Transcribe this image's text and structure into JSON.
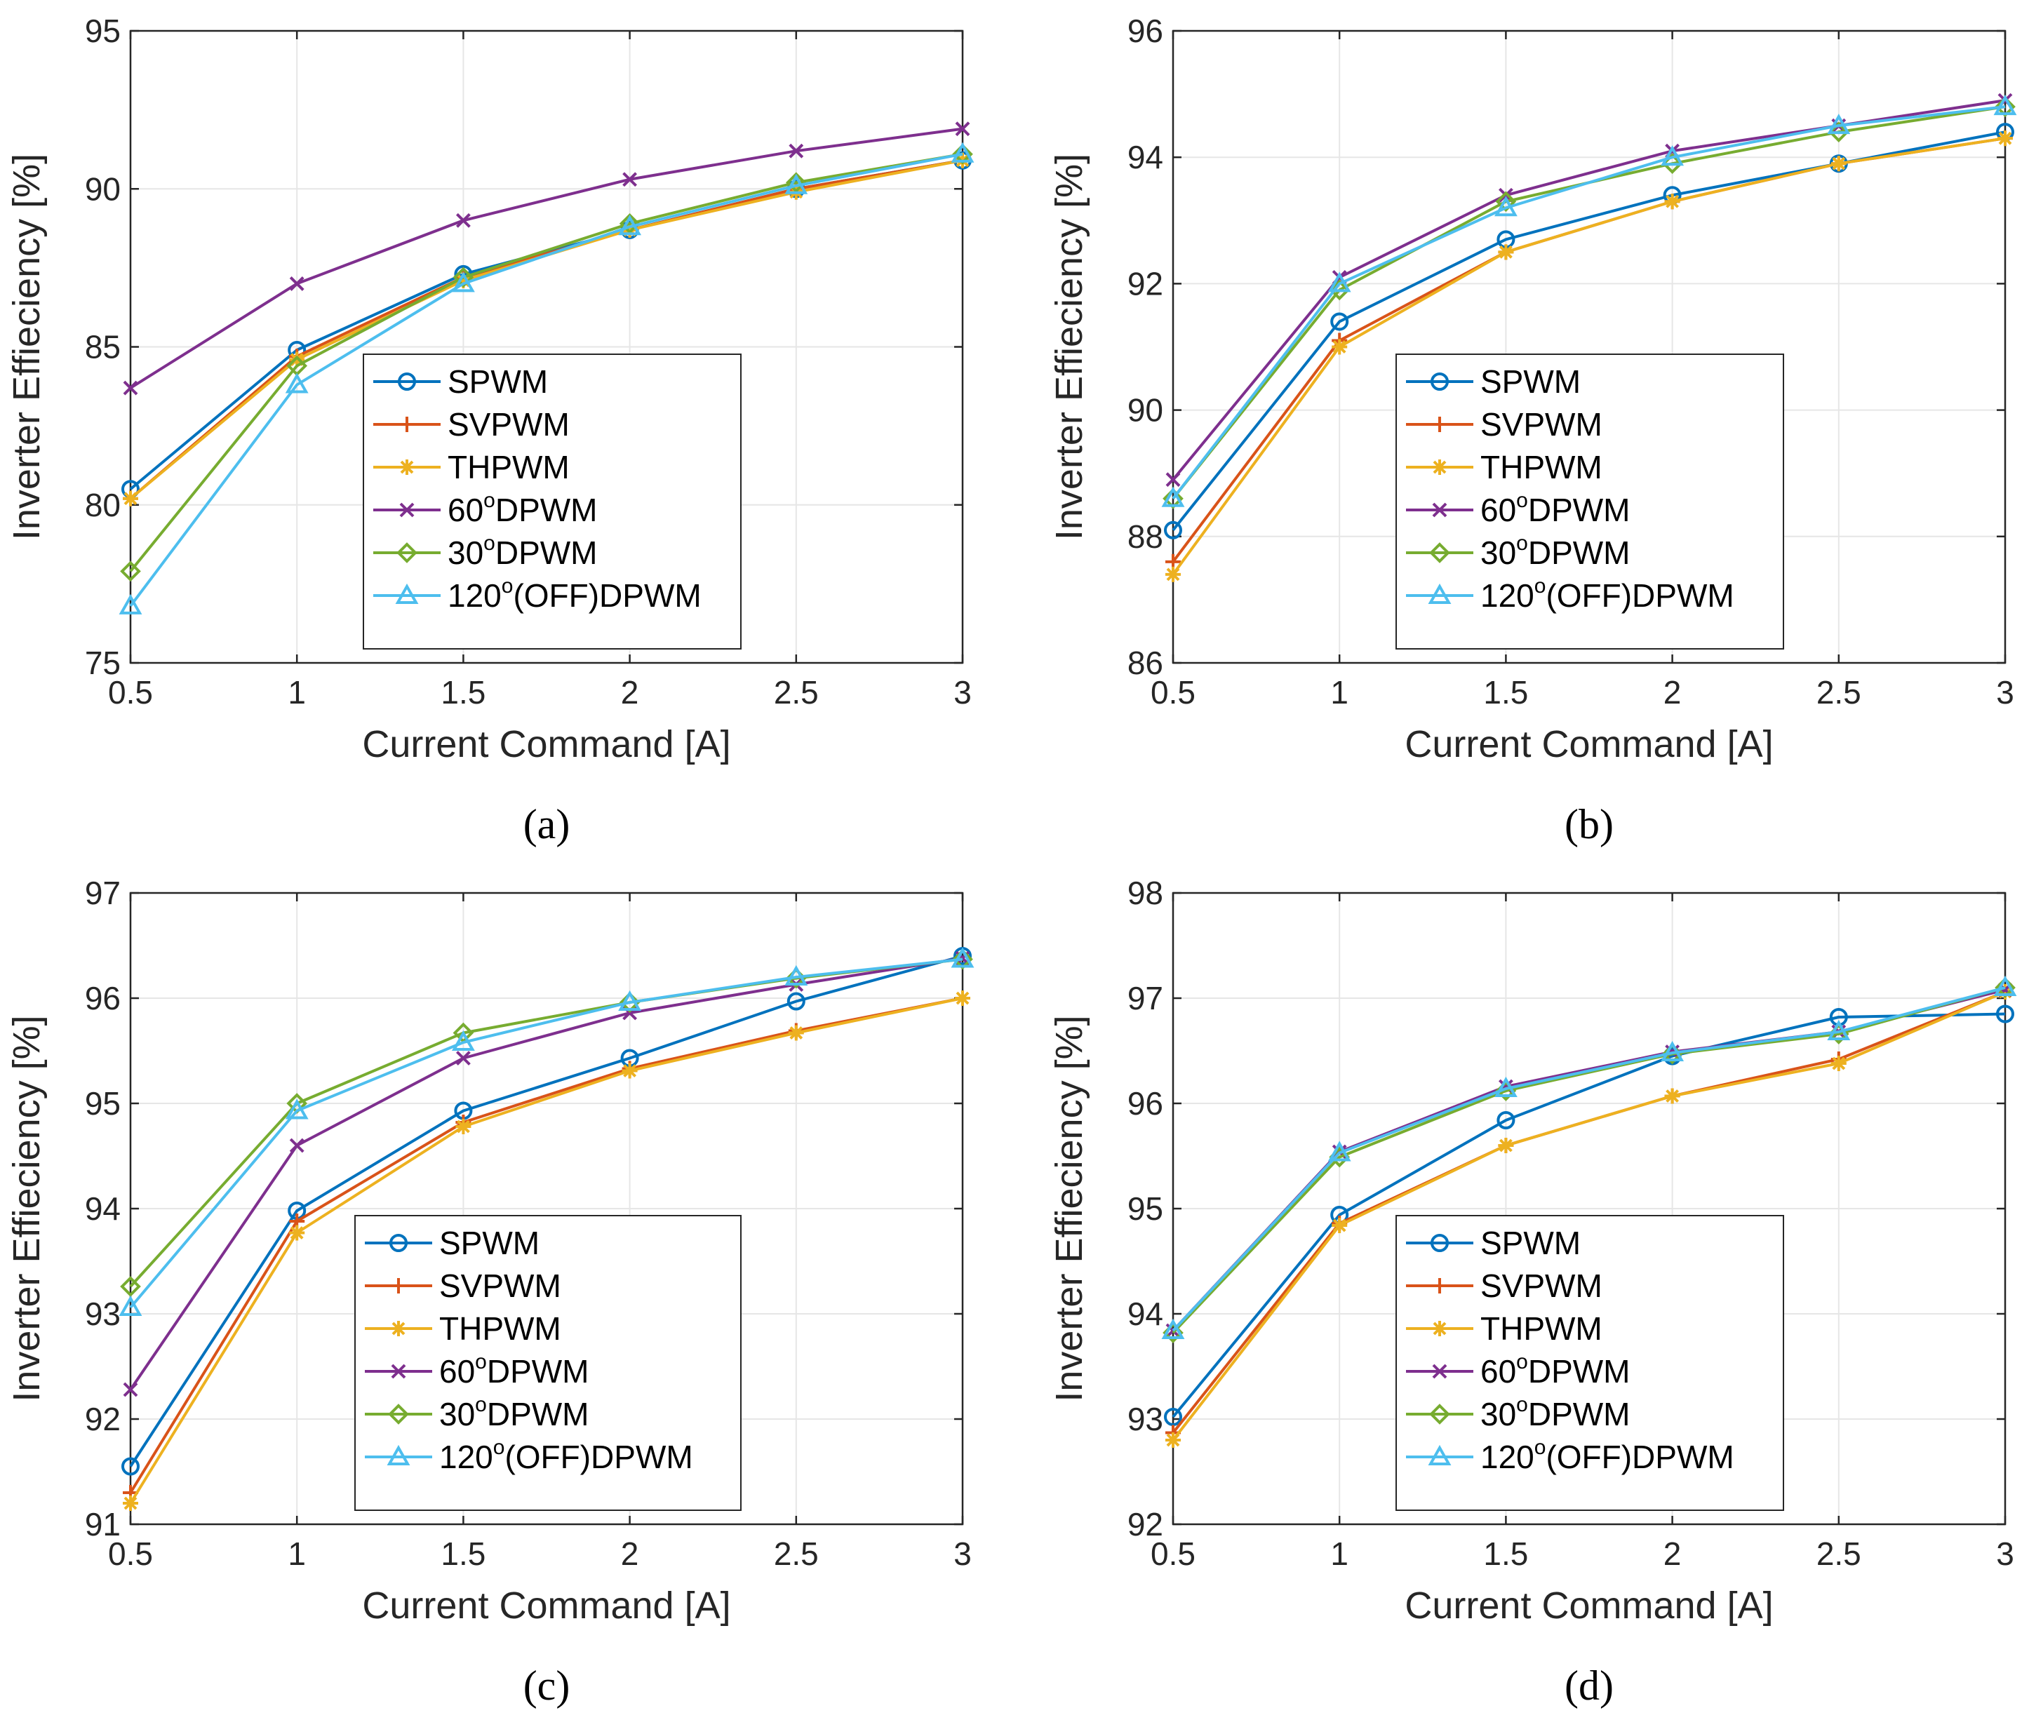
{
  "x_ticks": [
    "0.5",
    "1",
    "1.5",
    "2",
    "2.5",
    "3"
  ],
  "xlabel": "Current Command [A]",
  "ylabel": "Inverter Effieciency [%]",
  "colors": {
    "SPWM": "#0072BD",
    "SVPWM": "#D95319",
    "THPWM": "#EDB120",
    "DPWM60": "#7E2F8E",
    "DPWM30": "#77AC30",
    "DPWM120": "#4DBEEE"
  },
  "legend": [
    {
      "key": "SPWM",
      "text": "SPWM",
      "pre": "",
      "sup": "",
      "post": "",
      "marker": "circle"
    },
    {
      "key": "SVPWM",
      "text": "SVPWM",
      "pre": "",
      "sup": "",
      "post": "",
      "marker": "plus"
    },
    {
      "key": "THPWM",
      "text": "THPWM",
      "pre": "",
      "sup": "",
      "post": "",
      "marker": "star"
    },
    {
      "key": "DPWM60",
      "text": "",
      "pre": "60",
      "sup": "o",
      "post": "DPWM",
      "marker": "x"
    },
    {
      "key": "DPWM30",
      "text": "",
      "pre": "30",
      "sup": "o",
      "post": "DPWM",
      "marker": "diamond"
    },
    {
      "key": "DPWM120",
      "text": "",
      "pre": "120",
      "sup": "o",
      "post": "(OFF)DPWM",
      "marker": "triangle"
    }
  ],
  "chart_data": [
    {
      "type": "line",
      "caption": "(a)",
      "x": [
        0.5,
        1,
        1.5,
        2,
        2.5,
        3
      ],
      "ylim": [
        75,
        95
      ],
      "yticks": [
        "75",
        "80",
        "85",
        "90",
        "95"
      ],
      "xlabel": "Current Command [A]",
      "ylabel": "Inverter Effieciency [%]",
      "grid": true,
      "legend_position": "lower-right",
      "series": [
        {
          "name": "SPWM",
          "values": [
            80.5,
            84.9,
            87.3,
            88.7,
            90.0,
            90.9
          ]
        },
        {
          "name": "SVPWM",
          "values": [
            80.2,
            84.7,
            87.2,
            88.7,
            90.0,
            90.9
          ]
        },
        {
          "name": "THPWM",
          "values": [
            80.2,
            84.6,
            87.1,
            88.7,
            89.9,
            90.9
          ]
        },
        {
          "name": "60oDPWM",
          "values": [
            83.7,
            87.0,
            89.0,
            90.3,
            91.2,
            91.9
          ]
        },
        {
          "name": "30oDPWM",
          "values": [
            77.9,
            84.4,
            87.2,
            88.9,
            90.2,
            91.1
          ]
        },
        {
          "name": "120o(OFF)DPWM",
          "values": [
            76.8,
            83.8,
            87.0,
            88.8,
            90.1,
            91.1
          ]
        }
      ]
    },
    {
      "type": "line",
      "caption": "(b)",
      "x": [
        0.5,
        1,
        1.5,
        2,
        2.5,
        3
      ],
      "ylim": [
        86,
        96
      ],
      "yticks": [
        "86",
        "88",
        "90",
        "92",
        "94",
        "96"
      ],
      "xlabel": "Current Command [A]",
      "ylabel": "Inverter Effieciency [%]",
      "grid": true,
      "legend_position": "lower-right",
      "series": [
        {
          "name": "SPWM",
          "values": [
            88.1,
            91.4,
            92.7,
            93.4,
            93.9,
            94.4
          ]
        },
        {
          "name": "SVPWM",
          "values": [
            87.6,
            91.1,
            92.5,
            93.3,
            93.9,
            94.3
          ]
        },
        {
          "name": "THPWM",
          "values": [
            87.4,
            91.0,
            92.5,
            93.3,
            93.9,
            94.3
          ]
        },
        {
          "name": "60oDPWM",
          "values": [
            88.9,
            92.1,
            93.4,
            94.1,
            94.5,
            94.9
          ]
        },
        {
          "name": "30oDPWM",
          "values": [
            88.6,
            91.9,
            93.3,
            93.9,
            94.4,
            94.8
          ]
        },
        {
          "name": "120o(OFF)DPWM",
          "values": [
            88.6,
            92.0,
            93.2,
            94.0,
            94.5,
            94.8
          ]
        }
      ]
    },
    {
      "type": "line",
      "caption": "(c)",
      "x": [
        0.5,
        1,
        1.5,
        2,
        2.5,
        3
      ],
      "ylim": [
        91,
        97
      ],
      "yticks": [
        "91",
        "92",
        "93",
        "94",
        "95",
        "96",
        "97"
      ],
      "xlabel": "Current Command [A]",
      "ylabel": "Inverter Effieciency [%]",
      "grid": true,
      "legend_position": "lower-right",
      "series": [
        {
          "name": "SPWM",
          "values": [
            91.55,
            93.98,
            94.93,
            95.43,
            95.97,
            96.4
          ]
        },
        {
          "name": "SVPWM",
          "values": [
            91.3,
            93.88,
            94.82,
            95.33,
            95.69,
            96.0
          ]
        },
        {
          "name": "THPWM",
          "values": [
            91.2,
            93.77,
            94.78,
            95.31,
            95.67,
            96.0
          ]
        },
        {
          "name": "60oDPWM",
          "values": [
            92.28,
            94.6,
            95.43,
            95.86,
            96.13,
            96.38
          ]
        },
        {
          "name": "30oDPWM",
          "values": [
            93.26,
            95.0,
            95.67,
            95.96,
            96.19,
            96.37
          ]
        },
        {
          "name": "120o(OFF)DPWM",
          "values": [
            93.06,
            94.93,
            95.58,
            95.96,
            96.2,
            96.37
          ]
        }
      ]
    },
    {
      "type": "line",
      "caption": "(d)",
      "x": [
        0.5,
        1,
        1.5,
        2,
        2.5,
        3
      ],
      "ylim": [
        92,
        98
      ],
      "yticks": [
        "92",
        "93",
        "94",
        "95",
        "96",
        "97",
        "98"
      ],
      "xlabel": "Current Command [A]",
      "ylabel": "Inverter Effieciency [%]",
      "grid": true,
      "legend_position": "lower-right",
      "series": [
        {
          "name": "SPWM",
          "values": [
            93.02,
            94.94,
            95.84,
            96.45,
            96.82,
            96.85
          ]
        },
        {
          "name": "SVPWM",
          "values": [
            92.87,
            94.86,
            95.6,
            96.07,
            96.42,
            97.06
          ]
        },
        {
          "name": "THPWM",
          "values": [
            92.8,
            94.84,
            95.6,
            96.07,
            96.38,
            97.06
          ]
        },
        {
          "name": "60oDPWM",
          "values": [
            93.84,
            95.54,
            96.16,
            96.49,
            96.68,
            97.08
          ]
        },
        {
          "name": "30oDPWM",
          "values": [
            93.82,
            95.49,
            96.12,
            96.47,
            96.66,
            97.1
          ]
        },
        {
          "name": "120o(OFF)DPWM",
          "values": [
            93.84,
            95.53,
            96.14,
            96.48,
            96.68,
            97.1
          ]
        }
      ]
    }
  ]
}
